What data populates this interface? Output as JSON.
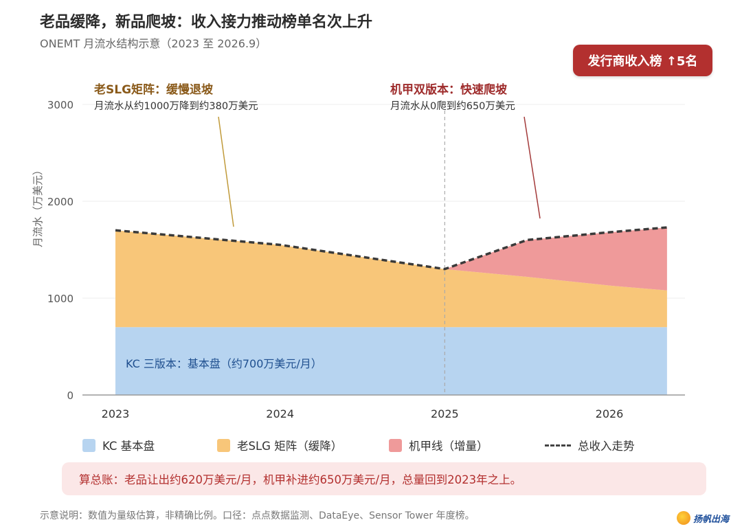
{
  "title": "老品缓降，新品爬坡：收入接力推动榜单名次上升",
  "subtitle": "ONEMT 月流水结构示意（2023 至 2026.9）",
  "badge": "发行商收入榜 ↑5名",
  "annotations": {
    "old": {
      "title": "老SLG矩阵：缓慢退坡",
      "sub": "月流水从约1000万降到约380万美元",
      "color": "#8a5a1a"
    },
    "new": {
      "title": "机甲双版本：快速爬坡",
      "sub": "月流水从0爬到约650万美元",
      "color": "#9e2b2b"
    },
    "kc": {
      "text": "KC 三版本：基本盘（约700万美元/月）",
      "color": "#1f4f8f"
    }
  },
  "chart_data": {
    "type": "area",
    "stacked": true,
    "x": [
      2023,
      2024,
      2025,
      2025.5,
      2026,
      2026.35
    ],
    "x_ticks": [
      "2023",
      "2024",
      "2025",
      "2026"
    ],
    "x_tick_values": [
      2023,
      2024,
      2025,
      2026
    ],
    "ylabel": "月流水（万美元）",
    "ylim": [
      0,
      3000
    ],
    "y_ticks": [
      0,
      1000,
      2000,
      3000
    ],
    "series": [
      {
        "name": "KC 基本盘",
        "color": "#b7d4f0",
        "values": [
          700,
          700,
          700,
          700,
          700,
          700
        ]
      },
      {
        "name": "老SLG 矩阵（缓降）",
        "color": "#f8c679",
        "values": [
          1000,
          850,
          600,
          520,
          430,
          380
        ]
      },
      {
        "name": "机甲线（增量）",
        "color": "#ef9a9a",
        "values": [
          0,
          0,
          0,
          380,
          550,
          650
        ]
      }
    ],
    "total": {
      "name": "总收入走势",
      "values": [
        1700,
        1550,
        1300,
        1600,
        1680,
        1730
      ]
    },
    "vline_x": 2025,
    "grid": true,
    "legend_position": "bottom"
  },
  "legend": [
    {
      "label": "KC 基本盘",
      "color": "#b7d4f0",
      "kind": "box"
    },
    {
      "label": "老SLG 矩阵（缓降）",
      "color": "#f8c679",
      "kind": "box"
    },
    {
      "label": "机甲线（增量）",
      "color": "#ef9a9a",
      "kind": "box"
    },
    {
      "label": "总收入走势",
      "color": "#444444",
      "kind": "dash"
    }
  ],
  "summary": "算总账：老品让出约620万美元/月，机甲补进约650万美元/月，总量回到2023年之上。",
  "footnote": "示意说明：数值为量级估算，非精确比例。口径：点点数据监测、DataEye、Sensor Tower 年度榜。",
  "logo_text": "扬帆出海"
}
